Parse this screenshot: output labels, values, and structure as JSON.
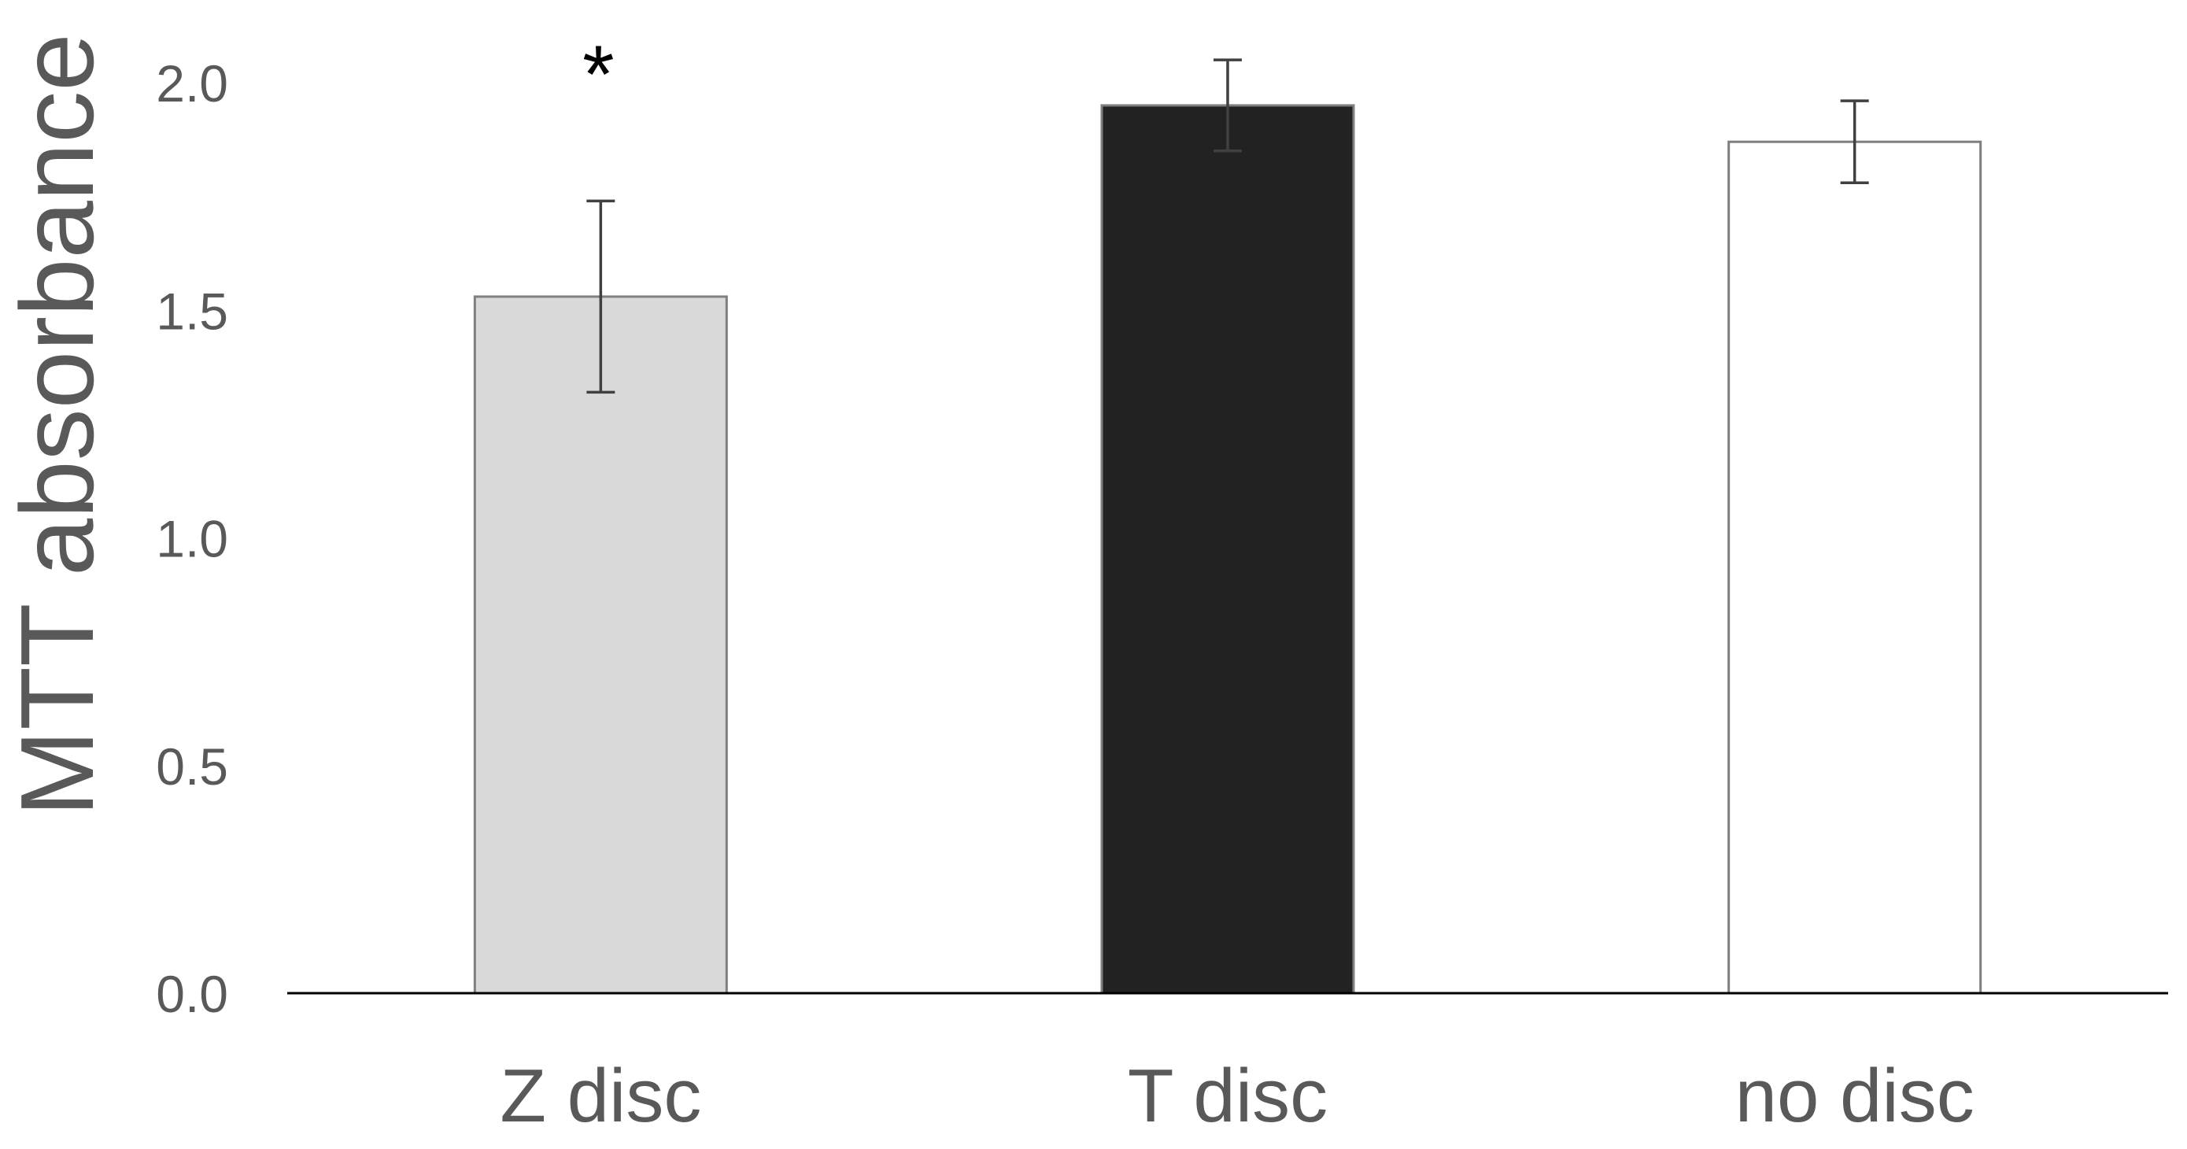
{
  "chart_data": {
    "type": "bar",
    "title": "",
    "xlabel": "",
    "ylabel": "MTT absorbance",
    "ylim": [
      0,
      2.0
    ],
    "yticks": [
      "0.0",
      "0.5",
      "1.0",
      "1.5",
      "2.0"
    ],
    "grid": false,
    "categories": [
      "Z disc",
      "T disc",
      "no disc"
    ],
    "values": [
      1.53,
      1.95,
      1.87
    ],
    "errors": [
      0.21,
      0.1,
      0.09
    ],
    "bar_colors": [
      "#d9d9d9",
      "#222222",
      "#ffffff"
    ],
    "bar_outline_color": "#7f7f7f",
    "annotations": [
      {
        "category": "Z disc",
        "text": "*"
      }
    ]
  }
}
